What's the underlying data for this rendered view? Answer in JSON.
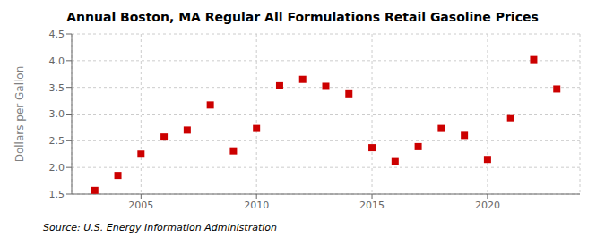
{
  "chart_data": {
    "type": "scatter",
    "title": "Annual Boston, MA Regular All Formulations Retail Gasoline Prices",
    "y_label": "Dollars per Gallon",
    "source": "Source: U.S. Energy Information Administration",
    "x": [
      2003,
      2004,
      2005,
      2006,
      2007,
      2008,
      2009,
      2010,
      2011,
      2012,
      2013,
      2014,
      2015,
      2016,
      2017,
      2018,
      2019,
      2020,
      2021,
      2022,
      2023
    ],
    "values": [
      1.57,
      1.85,
      2.25,
      2.57,
      2.7,
      3.17,
      2.31,
      2.73,
      3.53,
      3.65,
      3.52,
      3.38,
      2.37,
      2.11,
      2.39,
      2.73,
      2.6,
      2.15,
      2.93,
      4.02,
      3.47
    ],
    "color": "#cc0000",
    "marker": "square",
    "xlim": [
      2002,
      2024
    ],
    "xticks": [
      2005,
      2010,
      2015,
      2020
    ],
    "ylim": [
      1.5,
      4.5
    ],
    "yticks": [
      1.5,
      {
        "value": 2.0,
        "label": "2.0"
      },
      2.5,
      {
        "value": 3.0,
        "label": "3.0"
      },
      3.5,
      {
        "value": 4.0,
        "label": "4.0"
      },
      4.5
    ],
    "grid": true
  }
}
